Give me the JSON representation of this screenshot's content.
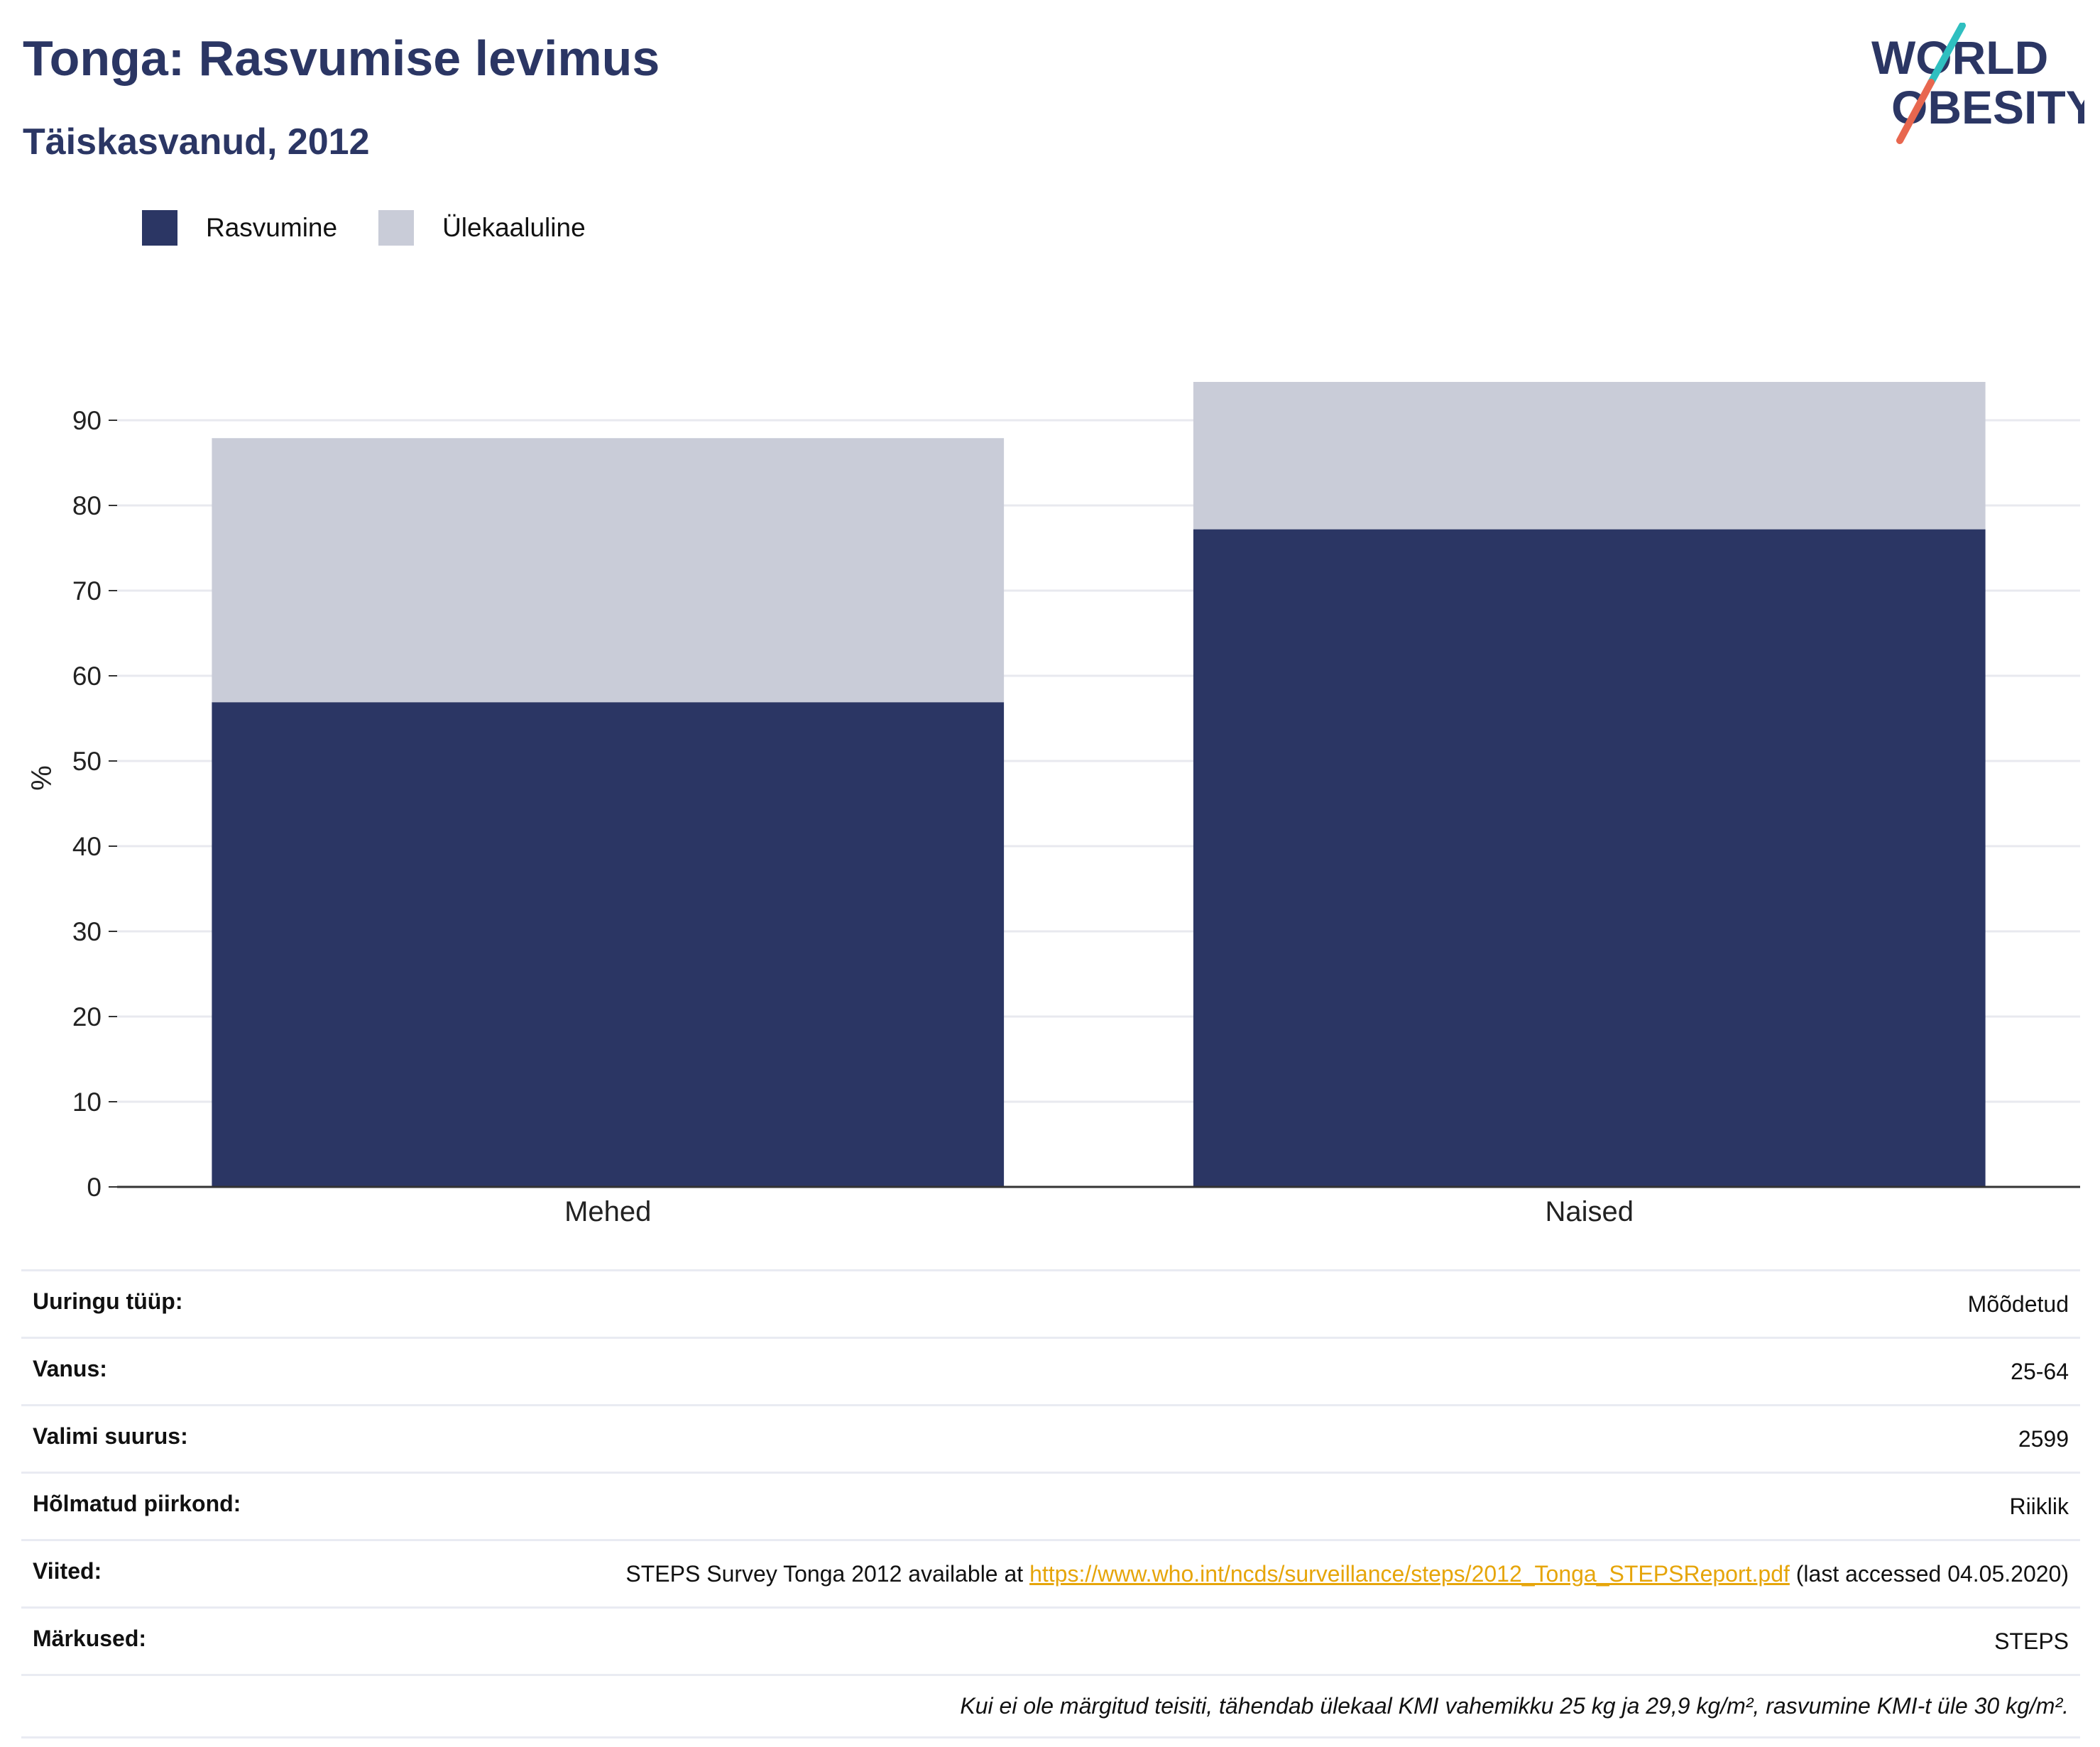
{
  "header": {
    "title": "Tonga: Rasvumise levimus",
    "subtitle": "Täiskasvanud, 2012"
  },
  "logo": {
    "line1": "WORLD",
    "line2": "OBESITY",
    "icon": "world-obesity-logo"
  },
  "legend": {
    "items": [
      {
        "label": "Rasvumine",
        "color": "#2b3664"
      },
      {
        "label": "Ülekaaluline",
        "color": "#c9ccd8"
      }
    ]
  },
  "chart_data": {
    "type": "bar",
    "stacked": true,
    "categories": [
      "Mehed",
      "Naised"
    ],
    "series": [
      {
        "name": "Rasvumine",
        "values": [
          56.9,
          77.2
        ],
        "color": "#2b3664"
      },
      {
        "name": "Ülekaaluline",
        "values": [
          31.0,
          17.3
        ],
        "color": "#c9ccd8"
      }
    ],
    "ylabel": "%",
    "yticks": [
      0,
      10,
      20,
      30,
      40,
      50,
      60,
      70,
      80,
      90
    ],
    "ylim": [
      0,
      96
    ],
    "grid": true,
    "legend_position": "top-left"
  },
  "info": {
    "rows": [
      {
        "key": "Uuringu tüüp:",
        "value": "Mõõdetud"
      },
      {
        "key": "Vanus:",
        "value": "25-64"
      },
      {
        "key": "Valimi suurus:",
        "value": "2599"
      },
      {
        "key": "Hõlmatud piirkond:",
        "value": "Riiklik"
      }
    ],
    "references": {
      "key": "Viited:",
      "text_before": "STEPS Survey Tonga 2012 available at ",
      "link": "https://www.who.int/ncds/surveillance/steps/2012_Tonga_STEPSReport.pdf",
      "text_after": " (last accessed 04.05.2020)"
    },
    "notes": {
      "key": "Märkused:",
      "value": "STEPS"
    },
    "footnote": "Kui ei ole märgitud teisiti, tähendab ülekaal KMI vahemikku 25 kg ja 29,9 kg/m², rasvumine KMI-t üle 30 kg/m²."
  }
}
